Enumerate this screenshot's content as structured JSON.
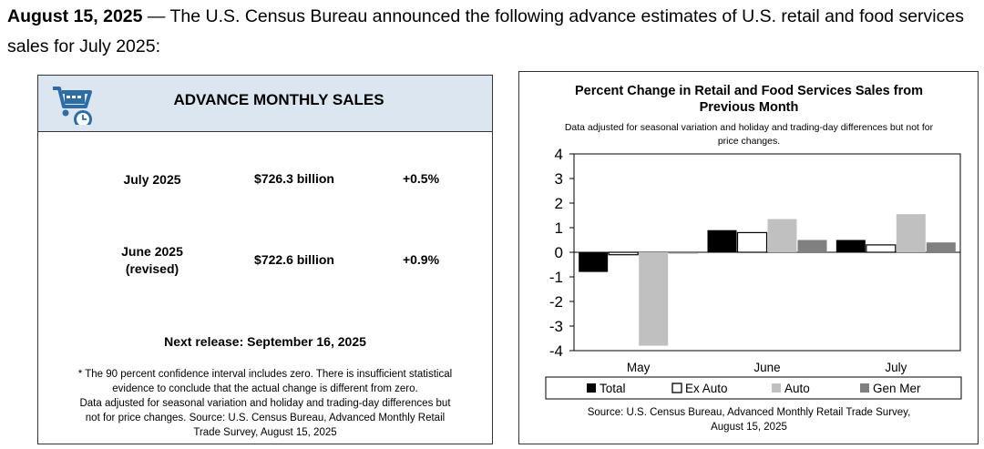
{
  "intro": {
    "date": "August 15, 2025",
    "text": " — The U.S. Census Bureau announced the following advance estimates of U.S. retail and food services sales for July 2025:"
  },
  "sales_panel": {
    "title": "ADVANCE MONTHLY SALES",
    "rows": [
      {
        "period_line1": "July 2025",
        "period_line2": "",
        "amount": "$726.3 billion",
        "pct_change": "+0.5%"
      },
      {
        "period_line1": "June 2025",
        "period_line2": "(revised)",
        "amount": "$722.6 billion",
        "pct_change": "+0.9%"
      }
    ],
    "next_release": "Next release: September 16, 2025",
    "footnote_line1": "* The 90 percent confidence interval includes zero. There is insufficient statistical",
    "footnote_line2": "evidence to conclude that the actual change is different from zero.",
    "footnote_line3": "Data adjusted for seasonal variation and holiday and trading-day differences but",
    "footnote_line4": "not for price changes. Source: U.S. Census Bureau, Advanced Monthly Retail",
    "footnote_line5": "Trade Survey, August 15, 2025"
  },
  "chart_data": {
    "type": "bar",
    "title_line1": "Percent Change in Retail and Food Services Sales from",
    "title_line2": "Previous Month",
    "subtitle_line1": "Data adjusted for seasonal variation and holiday and trading-day differences but not for",
    "subtitle_line2": "price changes.",
    "categories": [
      "May",
      "June",
      "July"
    ],
    "series": [
      {
        "name": "Total",
        "color": "#000000",
        "values": [
          -0.8,
          0.9,
          0.5
        ]
      },
      {
        "name": "Ex Auto",
        "color": "#ffffff",
        "values": [
          -0.1,
          0.8,
          0.3
        ]
      },
      {
        "name": "Auto",
        "color": "#c0c0c0",
        "values": [
          -3.8,
          1.35,
          1.55
        ]
      },
      {
        "name": "Gen Mer",
        "color": "#808080",
        "values": [
          -0.05,
          0.5,
          0.4
        ]
      }
    ],
    "ylim": [
      -4,
      4
    ],
    "yticks": [
      "4",
      "3",
      "2",
      "1",
      "0",
      "-1",
      "-2",
      "-3",
      "-4"
    ],
    "legend_position": "bottom",
    "source_line1": "Source: U.S. Census Bureau, Advanced Monthly Retail Trade Survey,",
    "source_line2": "August 15, 2025"
  },
  "colors": {
    "header_bg": "#dce6f1",
    "logo_blue": "#2e6da4"
  },
  "icons": {
    "logo": "shopping-cart-clock-icon"
  }
}
